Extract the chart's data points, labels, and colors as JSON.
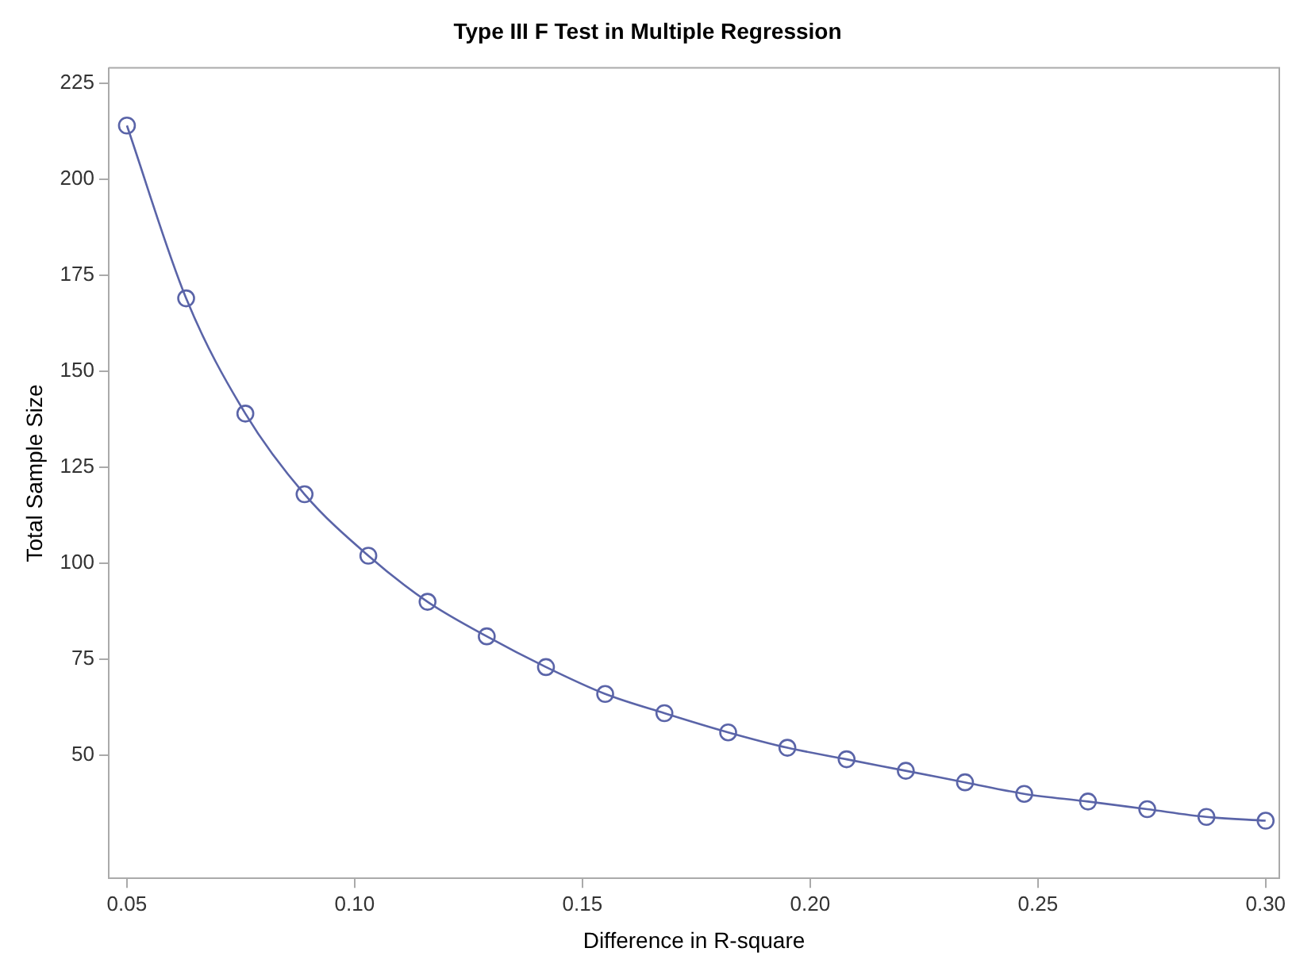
{
  "chart_data": {
    "type": "line",
    "title": "Type III F Test in Multiple Regression",
    "xlabel": "Difference in R-square",
    "ylabel": "Total Sample Size",
    "x": [
      0.05,
      0.063,
      0.076,
      0.089,
      0.103,
      0.116,
      0.129,
      0.142,
      0.155,
      0.168,
      0.182,
      0.195,
      0.208,
      0.221,
      0.234,
      0.247,
      0.261,
      0.274,
      0.287,
      0.3
    ],
    "series": [
      {
        "color": "#5a64a8",
        "values": [
          214,
          169,
          139,
          118,
          102,
          90,
          81,
          73,
          66,
          61,
          56,
          52,
          49,
          46,
          43,
          40,
          38,
          36,
          34,
          33
        ]
      }
    ],
    "xlim": [
      0.046,
      0.303
    ],
    "ylim": [
      18,
      229
    ],
    "xticks": [
      {
        "value": 0.05,
        "label": "0.05"
      },
      {
        "value": 0.1,
        "label": "0.10"
      },
      {
        "value": 0.15,
        "label": "0.15"
      },
      {
        "value": 0.2,
        "label": "0.20"
      },
      {
        "value": 0.25,
        "label": "0.25"
      },
      {
        "value": 0.3,
        "label": "0.30"
      }
    ],
    "yticks": [
      50,
      75,
      100,
      125,
      150,
      175,
      200,
      225
    ],
    "marker": "circle",
    "line_style": "solid",
    "legend": false,
    "grid": false
  }
}
